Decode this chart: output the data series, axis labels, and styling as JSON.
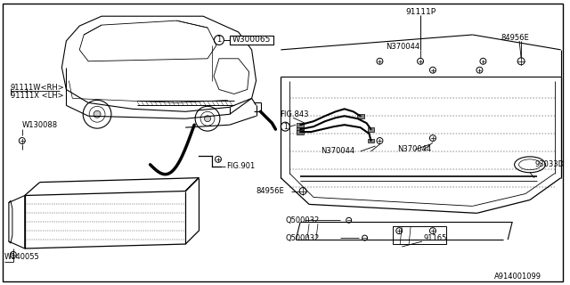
{
  "bg_color": "#ffffff",
  "line_color": "#000000",
  "text_color": "#000000",
  "diagram_id": "A914001099",
  "parts": {
    "top_right_label": "91111P",
    "wiring_label": "FIG.843",
    "bolt_N370044": "N370044",
    "clip_84956E": "84956E",
    "screw_Q500032": "Q500032",
    "part_91165": "91165",
    "part_93033D": "93033D",
    "part_91111W": "91111W<RH>",
    "part_91111X": "91111X <LH>",
    "part_W130088": "W130088",
    "part_W140055": "W140055",
    "part_FIG901": "FIG.901",
    "part_W300065": "W300065"
  }
}
